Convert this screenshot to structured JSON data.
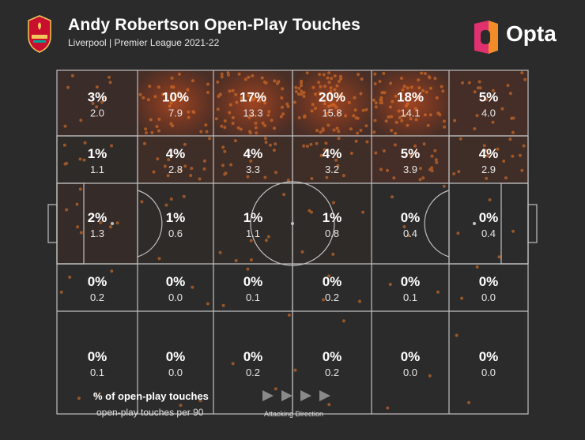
{
  "header": {
    "title": "Andy Robertson Open-Play Touches",
    "subtitle": "Liverpool | Premier League 2021-22",
    "crest_icon": "liverpool-crest-icon",
    "logo_icon": "opta-logo-icon",
    "logo_text": "Opta"
  },
  "legend": {
    "primary": "% of open-play touches",
    "secondary": "open-play touches per 90",
    "direction_label": "Attacking Direction",
    "direction_icon": "play-arrows-icon"
  },
  "chart_data": {
    "type": "heatmap",
    "title": "Andy Robertson Open-Play Touches",
    "subtitle": "Liverpool | Premier League 2021-22",
    "grid_cols": 6,
    "grid_rows": 5,
    "cells": [
      [
        {
          "pct": "3%",
          "p90": "2.0"
        },
        {
          "pct": "10%",
          "p90": "7.9"
        },
        {
          "pct": "17%",
          "p90": "13.3"
        },
        {
          "pct": "20%",
          "p90": "15.8"
        },
        {
          "pct": "18%",
          "p90": "14.1"
        },
        {
          "pct": "5%",
          "p90": "4.0"
        }
      ],
      [
        {
          "pct": "1%",
          "p90": "1.1"
        },
        {
          "pct": "4%",
          "p90": "2.8"
        },
        {
          "pct": "4%",
          "p90": "3.3"
        },
        {
          "pct": "4%",
          "p90": "3.2"
        },
        {
          "pct": "5%",
          "p90": "3.9"
        },
        {
          "pct": "4%",
          "p90": "2.9"
        }
      ],
      [
        {
          "pct": "2%",
          "p90": "1.3"
        },
        {
          "pct": "1%",
          "p90": "0.6"
        },
        {
          "pct": "1%",
          "p90": "1.1"
        },
        {
          "pct": "1%",
          "p90": "0.8"
        },
        {
          "pct": "0%",
          "p90": "0.4"
        },
        {
          "pct": "0%",
          "p90": "0.4"
        }
      ],
      [
        {
          "pct": "0%",
          "p90": "0.2"
        },
        {
          "pct": "0%",
          "p90": "0.0"
        },
        {
          "pct": "0%",
          "p90": "0.1"
        },
        {
          "pct": "0%",
          "p90": "0.2"
        },
        {
          "pct": "0%",
          "p90": "0.1"
        },
        {
          "pct": "0%",
          "p90": "0.0"
        }
      ],
      [
        {
          "pct": "0%",
          "p90": "0.1"
        },
        {
          "pct": "0%",
          "p90": "0.0"
        },
        {
          "pct": "0%",
          "p90": "0.2"
        },
        {
          "pct": "0%",
          "p90": "0.2"
        },
        {
          "pct": "0%",
          "p90": "0.0"
        },
        {
          "pct": "0%",
          "p90": "0.0"
        }
      ]
    ],
    "heat_color": "#e8400c",
    "pitch_line_color": "#bfbfbf",
    "background": "#2b2b2b"
  }
}
